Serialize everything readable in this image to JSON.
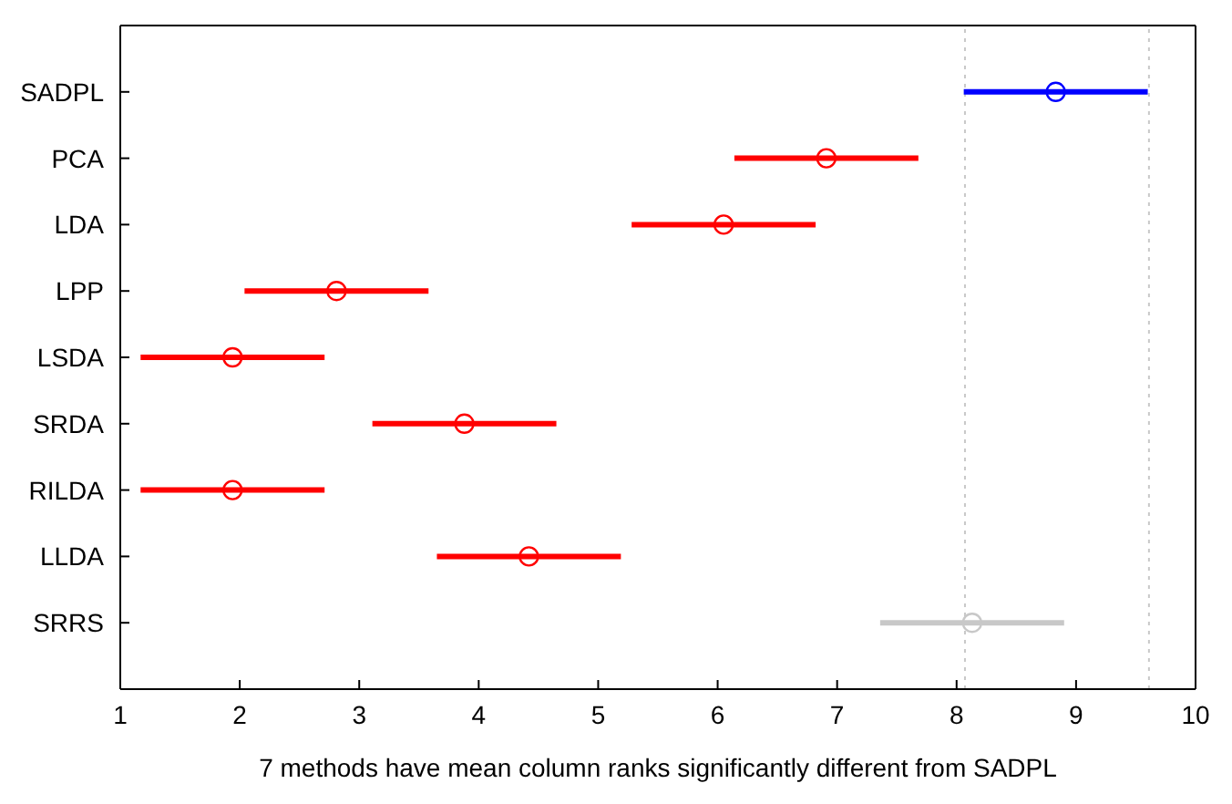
{
  "chart_data": {
    "type": "scatter",
    "orientation": "horizontal",
    "xlabel": "7 methods have mean column ranks significantly different from SADPL",
    "categories": [
      "SADPL",
      "PCA",
      "LDA",
      "LPP",
      "LSDA",
      "SRDA",
      "RILDA",
      "LLDA",
      "SRRS"
    ],
    "values": [
      8.83,
      6.91,
      6.05,
      2.81,
      1.94,
      3.88,
      1.94,
      4.42,
      8.13
    ],
    "errors": [
      0.77,
      0.77,
      0.77,
      0.77,
      0.77,
      0.77,
      0.77,
      0.77,
      0.77
    ],
    "colors": [
      "#0000ff",
      "#ff0000",
      "#ff0000",
      "#ff0000",
      "#ff0000",
      "#ff0000",
      "#ff0000",
      "#ff0000",
      "#c8c8c8"
    ],
    "marker": "circle",
    "xlim": [
      1,
      10
    ],
    "xticks": [
      1,
      2,
      3,
      4,
      5,
      6,
      7,
      8,
      9,
      10
    ],
    "ref_lines": [
      {
        "axis": "x",
        "value": 8.07,
        "color": "#c8c8c8",
        "line_style": "dotted"
      },
      {
        "axis": "x",
        "value": 9.61,
        "color": "#c8c8c8",
        "line_style": "dotted"
      }
    ]
  }
}
